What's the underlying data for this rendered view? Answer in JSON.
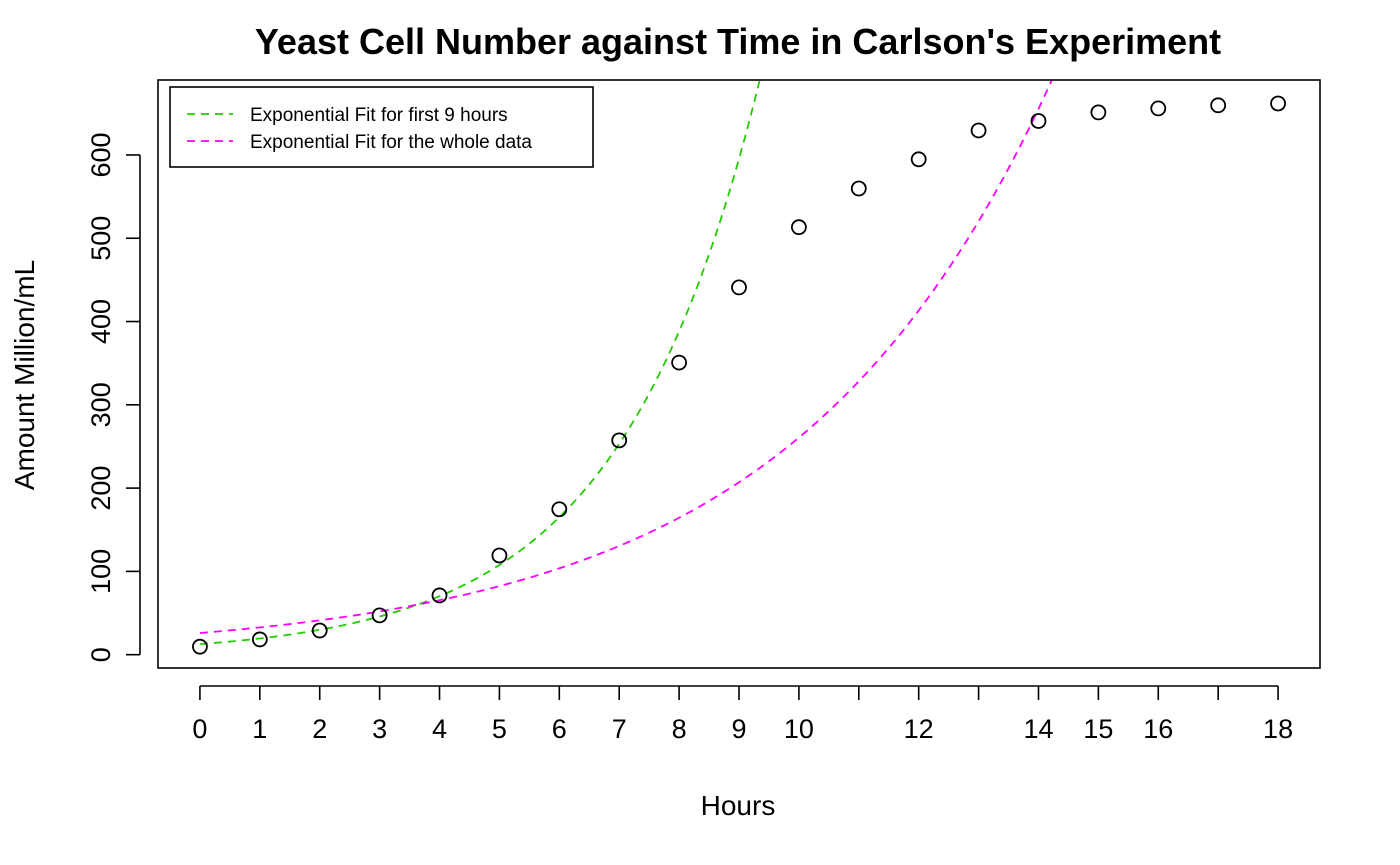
{
  "chart_data": {
    "type": "scatter",
    "title": "Yeast Cell Number against Time in Carlson's Experiment",
    "xlabel": "Hours",
    "ylabel": "Amount Million/mL",
    "xlim": [
      -0.7,
      18.7
    ],
    "ylim": [
      -16,
      690
    ],
    "x_ticks": [
      0,
      1,
      2,
      3,
      4,
      5,
      6,
      7,
      8,
      9,
      10,
      11,
      12,
      13,
      14,
      15,
      16,
      17,
      18
    ],
    "x_tick_labels": [
      "0",
      "1",
      "2",
      "3",
      "4",
      "5",
      "6",
      "7",
      "8",
      "9",
      "10",
      "",
      "12",
      "",
      "14",
      "15",
      "16",
      "",
      "18"
    ],
    "y_ticks": [
      0,
      100,
      200,
      300,
      400,
      500,
      600
    ],
    "y_tick_labels": [
      "0",
      "100",
      "200",
      "300",
      "400",
      "500",
      "600"
    ],
    "grid": false,
    "legend_position": "top-left",
    "points": {
      "x": [
        0,
        1,
        2,
        3,
        4,
        5,
        6,
        7,
        8,
        9,
        10,
        11,
        12,
        13,
        14,
        15,
        16,
        17,
        18
      ],
      "y": [
        9.6,
        18.3,
        29.0,
        47.2,
        71.1,
        119.1,
        174.6,
        257.3,
        350.7,
        441.0,
        513.3,
        559.7,
        594.8,
        629.4,
        640.8,
        651.1,
        655.9,
        659.6,
        661.8
      ]
    },
    "series": [
      {
        "name": "Exponential Fit for first 9 hours",
        "type": "line",
        "style": "dashed",
        "color": "#22cc00",
        "a": 12.7,
        "b": 0.4275,
        "x_range": [
          0,
          18
        ]
      },
      {
        "name": "Exponential Fit for the whole data",
        "type": "line",
        "style": "dashed",
        "color": "#ff00ff",
        "a": 26.0,
        "b": 0.2305,
        "x_range": [
          0,
          18
        ]
      }
    ]
  }
}
